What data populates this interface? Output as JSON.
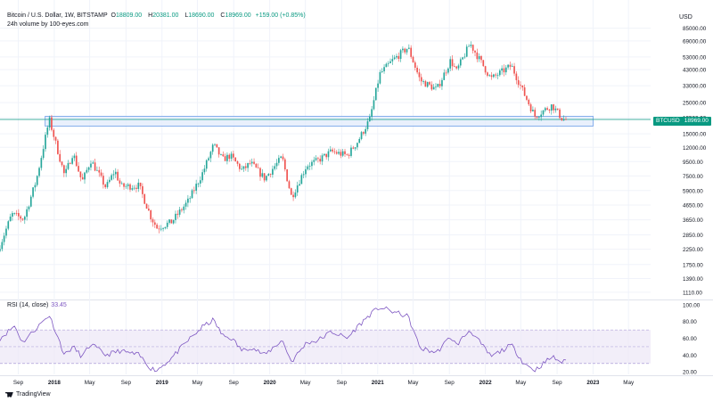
{
  "header": {
    "symbol": "Bitcoin / U.S. Dollar, 1W, BITSTAMP",
    "ohlc": [
      {
        "label": "O",
        "value": "18809.00"
      },
      {
        "label": "H",
        "value": "20381.00"
      },
      {
        "label": "L",
        "value": "18690.00"
      },
      {
        "label": "C",
        "value": "18969.00"
      }
    ],
    "change": "+159.00 (+0.85%)",
    "volume_label": "24h volume by 100-eyes.com"
  },
  "currency": "USD",
  "price_badge": {
    "symbol": "BTCUSD",
    "value": "18969.00"
  },
  "rsi": {
    "label": "RSI (14, close)",
    "value": "33.45"
  },
  "footer": {
    "brand": "TradingView"
  },
  "colors": {
    "up": "#26a69a",
    "down": "#ef5350",
    "rsi_line": "#7e57c2",
    "rsi_band": "#ede7f6",
    "zone": "#e3ecfb",
    "zone_border": "#6f9ee8",
    "price_line": "#089981"
  },
  "chart_data": [
    {
      "type": "candlestick",
      "title": "Bitcoin / U.S. Dollar, 1W, BITSTAMP",
      "yscale": "log",
      "ylim": [
        1000,
        110000
      ],
      "y_ticks": [
        "85000.00",
        "69000.00",
        "53000.00",
        "43000.00",
        "33000.00",
        "25000.00",
        "19500.00",
        "15000.00",
        "12000.00",
        "9500.00",
        "7500.00",
        "5900.00",
        "4650.00",
        "3650.00",
        "2850.00",
        "2250.00",
        "1750.00",
        "1390.00",
        "1110.00"
      ],
      "x_ticks": [
        "Sep",
        "2018",
        "May",
        "Sep",
        "2019",
        "May",
        "Sep",
        "2020",
        "May",
        "Sep",
        "2021",
        "May",
        "Sep",
        "2022",
        "May",
        "Sep",
        "2023",
        "May"
      ],
      "x_range": [
        "2017-07-01",
        "2023-07-15"
      ],
      "anchors": [
        [
          "2017-07-01",
          2400
        ],
        [
          "2017-08-10",
          4000
        ],
        [
          "2017-09-20",
          3700
        ],
        [
          "2017-11-01",
          7000
        ],
        [
          "2017-12-15",
          19000
        ],
        [
          "2018-02-05",
          7500
        ],
        [
          "2018-03-05",
          11000
        ],
        [
          "2018-04-05",
          6800
        ],
        [
          "2018-05-05",
          9700
        ],
        [
          "2018-06-25",
          6200
        ],
        [
          "2018-07-25",
          8200
        ],
        [
          "2018-08-15",
          6300
        ],
        [
          "2018-10-15",
          6400
        ],
        [
          "2018-11-25",
          3800
        ],
        [
          "2018-12-15",
          3200
        ],
        [
          "2019-02-01",
          3500
        ],
        [
          "2019-04-01",
          5000
        ],
        [
          "2019-05-20",
          8000
        ],
        [
          "2019-06-25",
          12500
        ],
        [
          "2019-07-25",
          9800
        ],
        [
          "2019-08-20",
          10500
        ],
        [
          "2019-09-30",
          8200
        ],
        [
          "2019-10-28",
          9300
        ],
        [
          "2019-12-15",
          7200
        ],
        [
          "2020-02-12",
          10200
        ],
        [
          "2020-03-15",
          5300
        ],
        [
          "2020-05-05",
          8900
        ],
        [
          "2020-06-10",
          9600
        ],
        [
          "2020-07-28",
          11200
        ],
        [
          "2020-09-20",
          10500
        ],
        [
          "2020-10-25",
          13200
        ],
        [
          "2020-12-05",
          19000
        ],
        [
          "2021-01-08",
          40000
        ],
        [
          "2021-02-20",
          50000
        ],
        [
          "2021-04-14",
          62000
        ],
        [
          "2021-05-25",
          36000
        ],
        [
          "2021-07-20",
          31000
        ],
        [
          "2021-09-05",
          50000
        ],
        [
          "2021-09-25",
          42000
        ],
        [
          "2021-11-10",
          66000
        ],
        [
          "2022-01-20",
          37000
        ],
        [
          "2022-03-30",
          46000
        ],
        [
          "2022-05-12",
          29000
        ],
        [
          "2022-06-18",
          20000
        ],
        [
          "2022-08-15",
          24000
        ],
        [
          "2022-09-20",
          19000
        ],
        [
          "2022-10-01",
          18969
        ]
      ],
      "last_price": 18969,
      "zone": {
        "from": "2017-12-01",
        "to": "2023-01-01",
        "low": 17000,
        "high": 20000
      }
    },
    {
      "type": "line",
      "title": "RSI (14, close)",
      "ylim": [
        17,
        102
      ],
      "y_ticks": [
        "100.00",
        "80.00",
        "60.00",
        "40.00",
        "20.00"
      ],
      "bands": {
        "upper": 70,
        "middle": 50,
        "lower": 30
      },
      "anchors": [
        [
          "2017-07-01",
          60
        ],
        [
          "2017-08-20",
          75
        ],
        [
          "2017-09-15",
          55
        ],
        [
          "2017-11-01",
          72
        ],
        [
          "2017-12-15",
          88
        ],
        [
          "2018-02-05",
          40
        ],
        [
          "2018-03-05",
          50
        ],
        [
          "2018-04-05",
          38
        ],
        [
          "2018-05-05",
          53
        ],
        [
          "2018-06-25",
          40
        ],
        [
          "2018-08-10",
          45
        ],
        [
          "2018-10-15",
          40
        ],
        [
          "2018-11-25",
          24
        ],
        [
          "2018-12-15",
          22
        ],
        [
          "2019-02-01",
          36
        ],
        [
          "2019-04-01",
          58
        ],
        [
          "2019-05-20",
          74
        ],
        [
          "2019-06-25",
          82
        ],
        [
          "2019-07-25",
          63
        ],
        [
          "2019-08-25",
          60
        ],
        [
          "2019-09-30",
          45
        ],
        [
          "2019-10-28",
          50
        ],
        [
          "2019-12-15",
          40
        ],
        [
          "2020-02-12",
          58
        ],
        [
          "2020-03-15",
          32
        ],
        [
          "2020-05-05",
          55
        ],
        [
          "2020-06-10",
          57
        ],
        [
          "2020-07-28",
          68
        ],
        [
          "2020-09-20",
          60
        ],
        [
          "2020-10-25",
          74
        ],
        [
          "2020-12-05",
          88
        ],
        [
          "2021-01-08",
          97
        ],
        [
          "2021-02-20",
          92
        ],
        [
          "2021-04-14",
          86
        ],
        [
          "2021-05-25",
          48
        ],
        [
          "2021-07-20",
          43
        ],
        [
          "2021-09-05",
          62
        ],
        [
          "2021-09-25",
          52
        ],
        [
          "2021-11-10",
          70
        ],
        [
          "2022-01-20",
          38
        ],
        [
          "2022-03-30",
          52
        ],
        [
          "2022-05-12",
          30
        ],
        [
          "2022-06-18",
          22
        ],
        [
          "2022-08-15",
          38
        ],
        [
          "2022-09-20",
          31
        ],
        [
          "2022-10-01",
          33.45
        ]
      ]
    }
  ]
}
